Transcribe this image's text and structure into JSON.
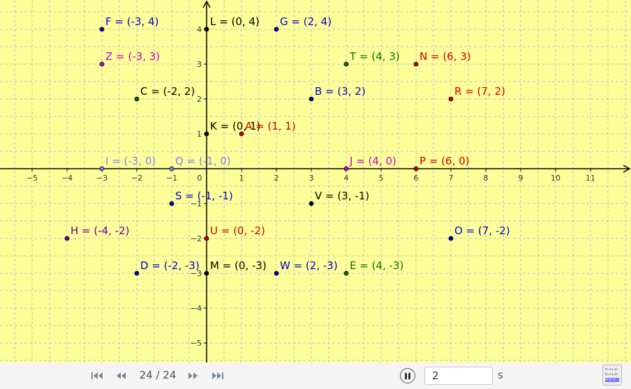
{
  "axes": {
    "x_ticks": [
      "−5",
      "−4",
      "−3",
      "−2",
      "−1",
      "0",
      "1",
      "2",
      "3",
      "4",
      "5",
      "6",
      "7",
      "8",
      "9",
      "10",
      "11"
    ],
    "x_tick_values": [
      -5,
      -4,
      -3,
      -2,
      -1,
      0,
      1,
      2,
      3,
      4,
      5,
      6,
      7,
      8,
      9,
      10,
      11
    ],
    "y_ticks": [
      "4",
      "3",
      "2",
      "1",
      "−1",
      "−2",
      "−3",
      "−4",
      "−5"
    ],
    "y_tick_values": [
      4,
      3,
      2,
      1,
      -1,
      -2,
      -3,
      -4,
      -5
    ],
    "xlim": [
      -5.92,
      12.16
    ],
    "ylim": [
      -5.56,
      4.84
    ],
    "grid": true,
    "minor_grid_step": 0.5
  },
  "points": [
    {
      "name": "F",
      "x": -3,
      "y": 4,
      "label": "F = (-3, 4)",
      "color": "#0000cc"
    },
    {
      "name": "L",
      "x": 0,
      "y": 4,
      "label": "L = (0, 4)",
      "color": "#000000"
    },
    {
      "name": "G",
      "x": 2,
      "y": 4,
      "label": "G = (2, 4)",
      "color": "#0000cc"
    },
    {
      "name": "Z",
      "x": -3,
      "y": 3,
      "label": "Z = (-3, 3)",
      "color": "#cc00cc"
    },
    {
      "name": "T",
      "x": 4,
      "y": 3,
      "label": "T = (4, 3)",
      "color": "#007700"
    },
    {
      "name": "N",
      "x": 6,
      "y": 3,
      "label": "N = (6, 3)",
      "color": "#cc0000"
    },
    {
      "name": "C",
      "x": -2,
      "y": 2,
      "label": "C = (-2, 2)",
      "color": "#000000",
      "dot": "#006600"
    },
    {
      "name": "B",
      "x": 3,
      "y": 2,
      "label": "B = (3, 2)",
      "color": "#0000cc"
    },
    {
      "name": "R",
      "x": 7,
      "y": 2,
      "label": "R = (7, 2)",
      "color": "#cc0000"
    },
    {
      "name": "K",
      "x": 0,
      "y": 1,
      "label": "K = (0, 1)",
      "color": "#000000"
    },
    {
      "name": "A",
      "x": 1,
      "y": 1,
      "label": "A = (1, 1)",
      "color": "#cc0000"
    },
    {
      "name": "I",
      "x": -3,
      "y": 0,
      "label": "I = (-3, 0)",
      "color": "#7f7fff"
    },
    {
      "name": "Q",
      "x": -1,
      "y": 0,
      "label": "Q = (-1, 0)",
      "color": "#7f7fff"
    },
    {
      "name": "J",
      "x": 4,
      "y": 0,
      "label": "J = (4, 0)",
      "color": "#cc00cc"
    },
    {
      "name": "P",
      "x": 6,
      "y": 0,
      "label": "P = (6, 0)",
      "color": "#cc0000"
    },
    {
      "name": "S",
      "x": -1,
      "y": -1,
      "label": "S = (-1, -1)",
      "color": "#0000cc"
    },
    {
      "name": "V",
      "x": 3,
      "y": -1,
      "label": "V = (3, -1)",
      "color": "#000000"
    },
    {
      "name": "H",
      "x": -4,
      "y": -2,
      "label": "H = (-4, -2)",
      "color": "#660099"
    },
    {
      "name": "U",
      "x": 0,
      "y": -2,
      "label": "U = (0, -2)",
      "color": "#cc0000"
    },
    {
      "name": "O",
      "x": 7,
      "y": -2,
      "label": "O = (7, -2)",
      "color": "#0000cc"
    },
    {
      "name": "D",
      "x": -2,
      "y": -3,
      "label": "D = (-2, -3)",
      "color": "#0000cc"
    },
    {
      "name": "M",
      "x": 0,
      "y": -3,
      "label": "M = (0, -3)",
      "color": "#000000"
    },
    {
      "name": "W",
      "x": 2,
      "y": -3,
      "label": "W = (2, -3)",
      "color": "#0000cc"
    },
    {
      "name": "E",
      "x": 4,
      "y": -3,
      "label": "E = (4, -3)",
      "color": "#007700"
    }
  ],
  "controls": {
    "step_counter": "24 / 24",
    "speed_value": "2",
    "speed_unit": "s",
    "algebra_rows": [
      "A=(1,1)",
      "B=(3,2)",
      "a: y=x"
    ]
  },
  "colors": {
    "background": "#ffff99",
    "grid": "#c0c0c0",
    "axis": "#000000"
  }
}
